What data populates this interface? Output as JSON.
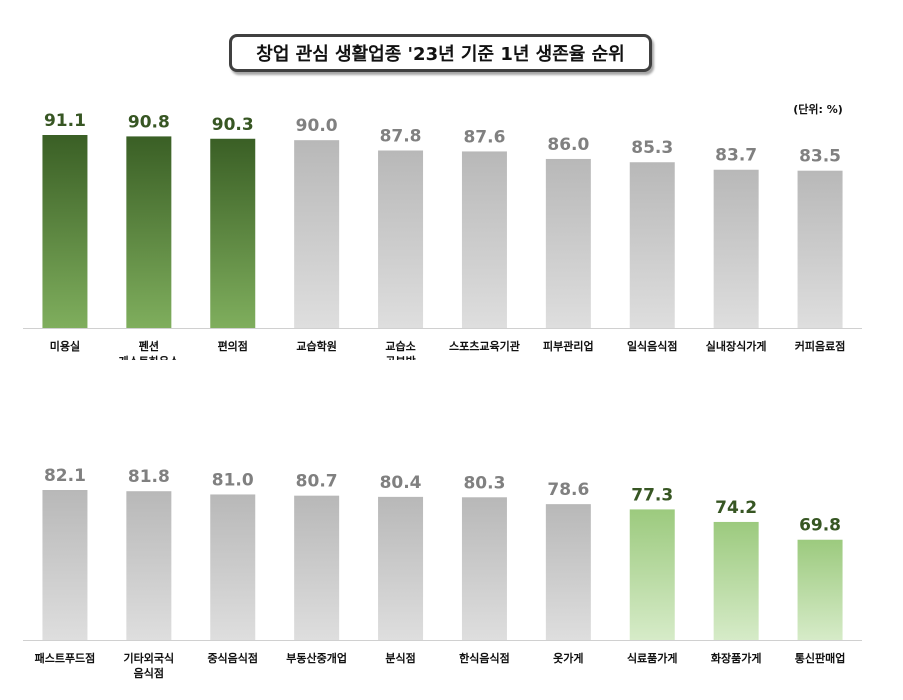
{
  "title": "창업 관심 생활업종 '23년 기준 1년 생존율 순위",
  "unit_label": "(단위: %)",
  "colors": {
    "dark_green_top": "#3a5f25",
    "dark_green_bottom": "#7fae5d",
    "light_green_top": "#9cca7e",
    "light_green_bottom": "#d6ebc8",
    "gray_top": "#b8b8b8",
    "gray_bottom": "#dedede",
    "dark_green_label": "#375623",
    "gray_label": "#808080"
  },
  "chart_data": [
    {
      "type": "bar",
      "title": "",
      "xlabel": "",
      "ylabel": "",
      "unit": "%",
      "categories": [
        "미용실",
        "펜션\n게스트하우스",
        "편의점",
        "교습학원",
        "교습소\n공부방",
        "스포츠교육기관",
        "피부관리업",
        "일식음식점",
        "실내장식가게",
        "커피음료점"
      ],
      "values": [
        91.1,
        90.8,
        90.3,
        90.0,
        87.8,
        87.6,
        86.0,
        85.3,
        83.7,
        83.5
      ],
      "value_labels": [
        "91.1",
        "90.8",
        "90.3",
        "90.0",
        "87.8",
        "87.6",
        "86.0",
        "85.3",
        "83.7",
        "83.5"
      ],
      "highlight": [
        "top",
        "top",
        "top",
        "none",
        "none",
        "none",
        "none",
        "none",
        "none",
        "none"
      ]
    },
    {
      "type": "bar",
      "title": "",
      "xlabel": "",
      "ylabel": "",
      "unit": "%",
      "categories": [
        "패스트푸드점",
        "기타외국식\n음식점",
        "중식음식점",
        "부동산중개업",
        "분식점",
        "한식음식점",
        "옷가게",
        "식료품가게",
        "화장품가게",
        "통신판매업"
      ],
      "values": [
        82.1,
        81.8,
        81.0,
        80.7,
        80.4,
        80.3,
        78.6,
        77.3,
        74.2,
        69.8
      ],
      "value_labels": [
        "82.1",
        "81.8",
        "81.0",
        "80.7",
        "80.4",
        "80.3",
        "78.6",
        "77.3",
        "74.2",
        "69.8"
      ],
      "highlight": [
        "none",
        "none",
        "none",
        "none",
        "none",
        "none",
        "none",
        "bottom",
        "bottom",
        "bottom"
      ]
    }
  ]
}
